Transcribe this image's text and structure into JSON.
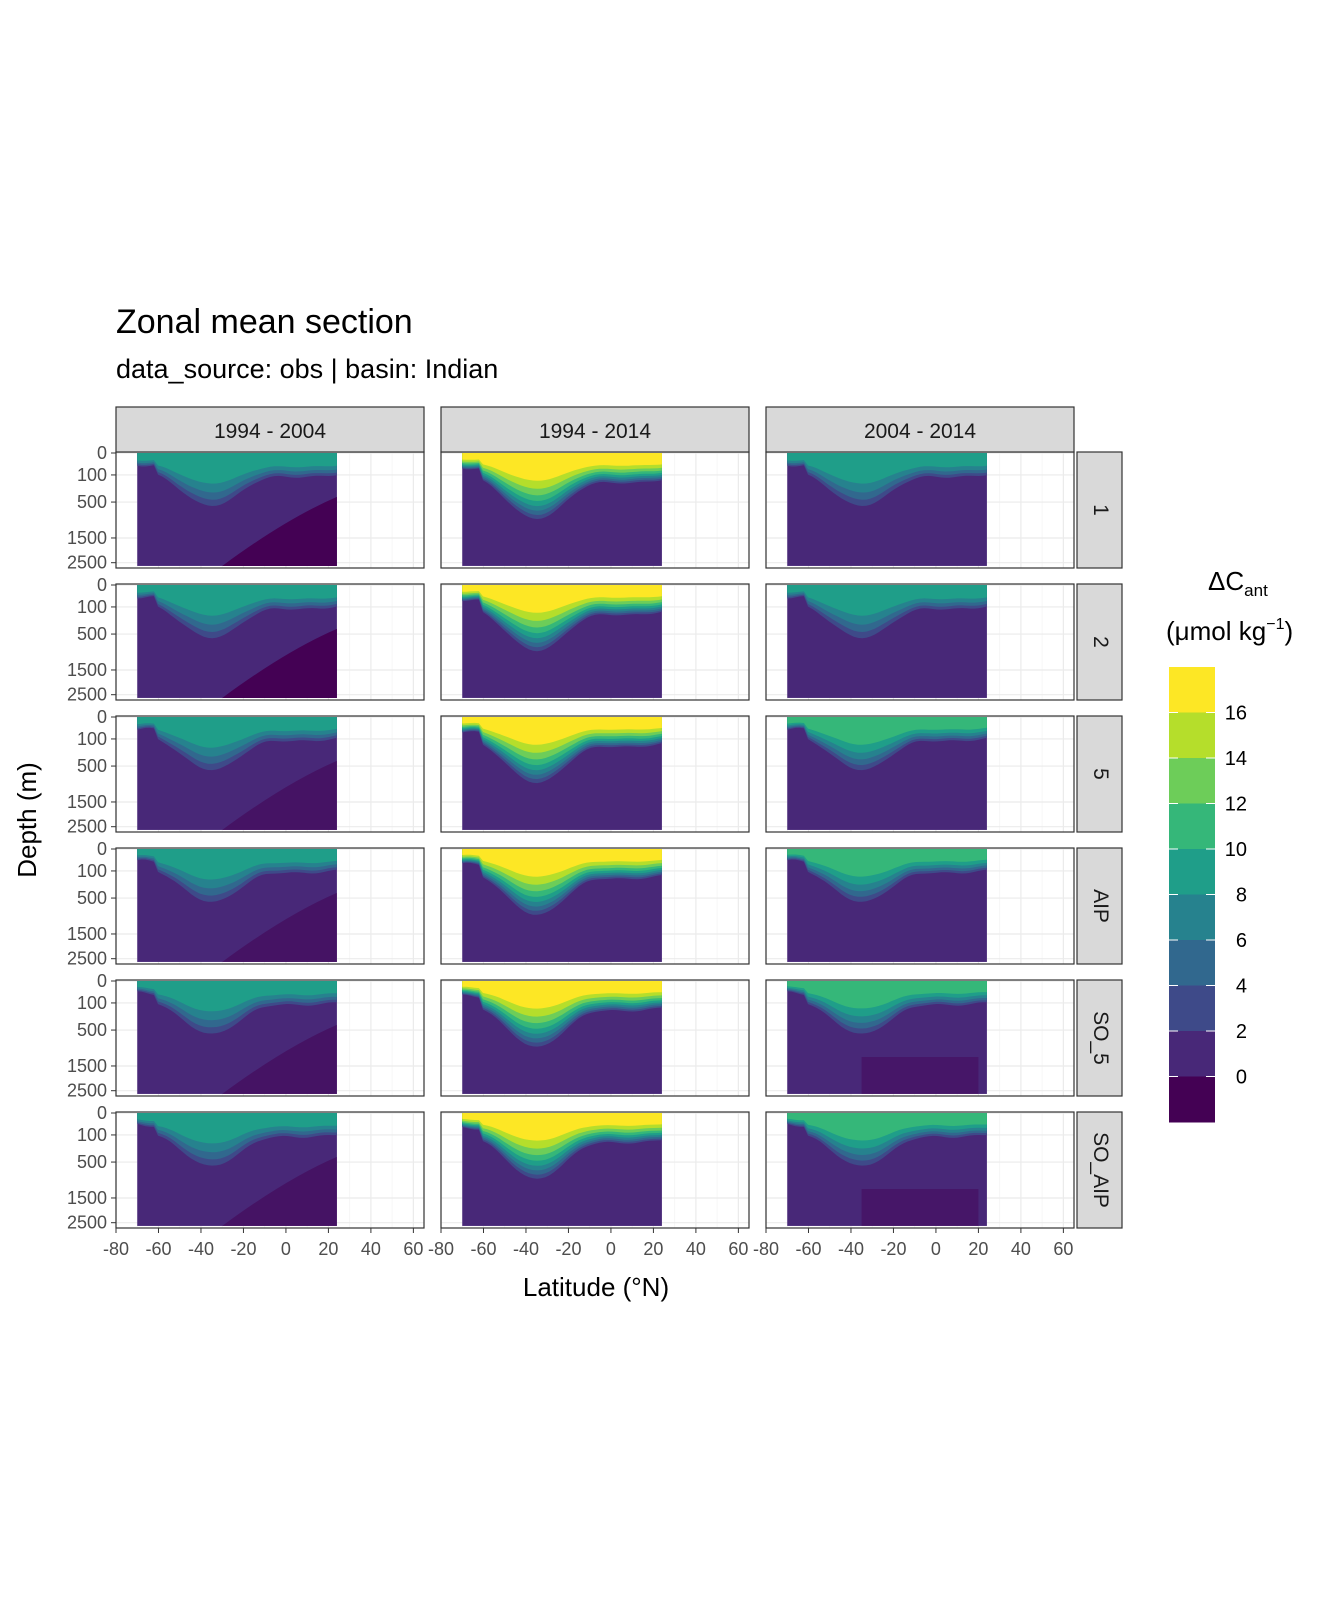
{
  "title": "Zonal mean section",
  "subtitle": "data_source:  obs | basin: Indian",
  "chart_data": {
    "type": "heatmap",
    "title": "Zonal mean section",
    "subtitle": "data_source:  obs | basin: Indian",
    "xlabel": "Latitude (°N)",
    "ylabel": "Depth (m)",
    "xlim": [
      -80,
      65
    ],
    "x_ticks": [
      -80,
      -60,
      -40,
      -20,
      0,
      20,
      40,
      60
    ],
    "x_tick_labels": [
      "-80",
      "-60",
      "-40",
      "-20",
      "0",
      "20",
      "40",
      "60"
    ],
    "y_ticks": [
      0,
      100,
      500,
      1500,
      2500
    ],
    "y_tick_labels": [
      "0",
      "100",
      "500",
      "1500",
      "2500"
    ],
    "y_scale": "sqrt, reversed",
    "data_lat_range": [
      -70,
      24
    ],
    "facet_columns": [
      "1994 - 2004",
      "1994 - 2014",
      "2004 - 2014"
    ],
    "facet_rows": [
      "1",
      "2",
      "5",
      "AIP",
      "SO_5",
      "SO_AIP"
    ],
    "legend": {
      "title_main": "ΔC",
      "title_sub": "ant",
      "unit_main": "(μmol kg",
      "unit_sup": "−1",
      "unit_close": ")",
      "placement": "right",
      "breaks": [
        "16",
        "14",
        "12",
        "10",
        "8",
        "6",
        "4",
        "2",
        "0"
      ],
      "colors": [
        "#FDE725",
        "#B5DE2B",
        "#6DCD59",
        "#35B779",
        "#1F9E89",
        "#26828E",
        "#31688E",
        "#3E4A89",
        "#482878",
        "#440154"
      ]
    },
    "panels_note_levels": "surface-layer dCant level per panel (row × column), 1994-2014 saturates above 16",
    "surface_levels": [
      [
        10,
        18,
        10
      ],
      [
        10,
        18,
        10
      ],
      [
        10,
        18,
        12
      ],
      [
        10,
        18,
        12
      ],
      [
        10,
        18,
        12
      ],
      [
        10,
        18,
        12
      ]
    ]
  }
}
